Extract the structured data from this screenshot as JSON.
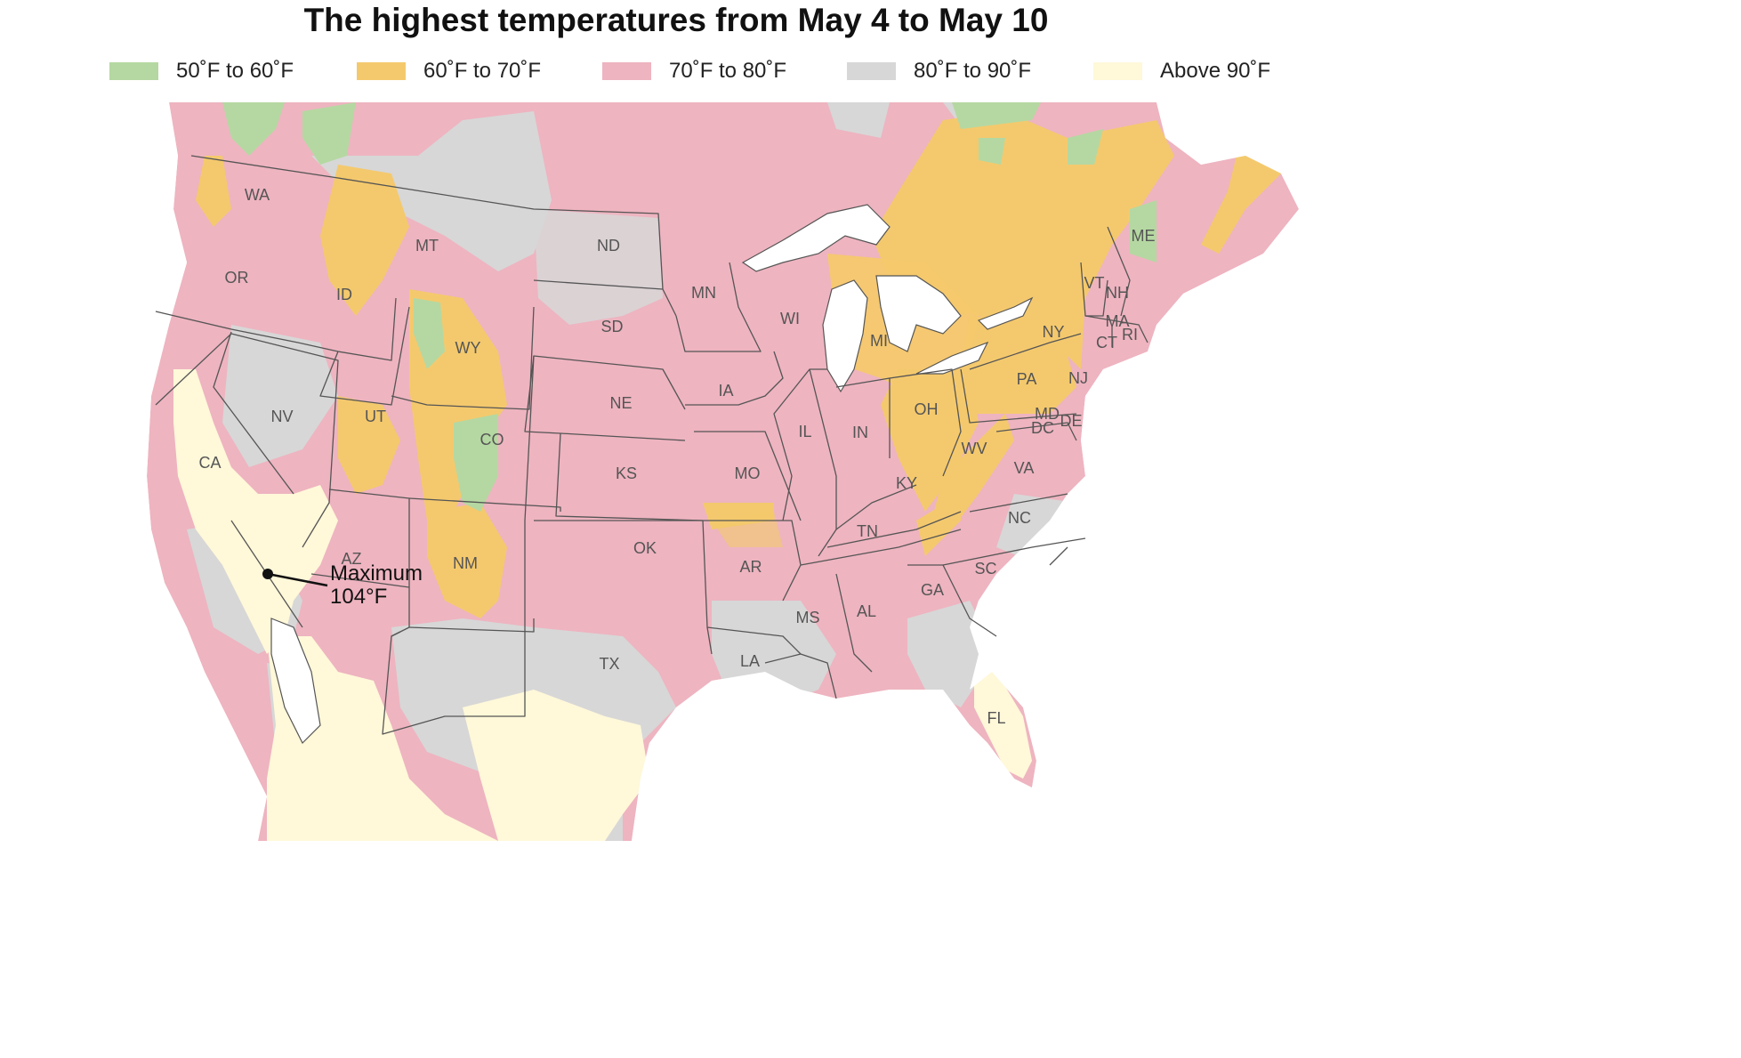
{
  "title": "The highest temperatures from May 4 to May 10",
  "legend": [
    {
      "label": "50˚F to 60˚F",
      "color": "#b5d8a2"
    },
    {
      "label": "60˚F to 70˚F",
      "color": "#f4c96d"
    },
    {
      "label": "70˚F to 80˚F",
      "color": "#eeb4c0"
    },
    {
      "label": "80˚F to 90˚F",
      "color": "#d7d7d7"
    },
    {
      "label": "Above 90˚F",
      "color": "#fff8d9"
    }
  ],
  "colors": {
    "water": "#ffffff",
    "border": "#555555",
    "label": "#555555"
  },
  "annotation": {
    "line1": "Maximum",
    "line2": "104°F"
  },
  "states": [
    "WA",
    "OR",
    "CA",
    "ID",
    "NV",
    "MT",
    "WY",
    "UT",
    "AZ",
    "CO",
    "NM",
    "ND",
    "SD",
    "NE",
    "KS",
    "OK",
    "TX",
    "MN",
    "IA",
    "MO",
    "AR",
    "LA",
    "WI",
    "IL",
    "MS",
    "MI",
    "IN",
    "KY",
    "TN",
    "AL",
    "OH",
    "GA",
    "FL",
    "WV",
    "SC",
    "NC",
    "VA",
    "PA",
    "NY",
    "MD",
    "DC",
    "DE",
    "NJ",
    "CT",
    "RI",
    "MA",
    "VT",
    "NH",
    "ME"
  ]
}
